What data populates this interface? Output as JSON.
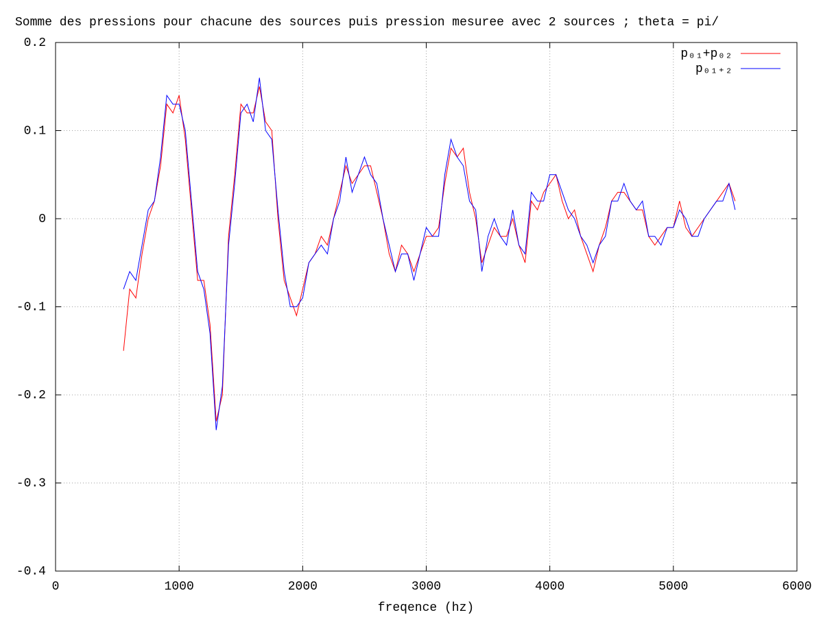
{
  "chart_data": {
    "type": "line",
    "title": "Somme des pressions pour chacune des sources puis pression mesuree avec 2 sources ; theta = pi/",
    "x_label": "freqence (hz)",
    "x": [
      550,
      600,
      650,
      700,
      750,
      800,
      850,
      900,
      950,
      1000,
      1050,
      1100,
      1150,
      1200,
      1250,
      1300,
      1350,
      1400,
      1450,
      1500,
      1550,
      1600,
      1650,
      1700,
      1750,
      1800,
      1850,
      1900,
      1950,
      2000,
      2050,
      2100,
      2150,
      2200,
      2250,
      2300,
      2350,
      2400,
      2450,
      2500,
      2550,
      2600,
      2650,
      2700,
      2750,
      2800,
      2850,
      2900,
      2950,
      3000,
      3050,
      3100,
      3150,
      3200,
      3250,
      3300,
      3350,
      3400,
      3450,
      3500,
      3550,
      3600,
      3650,
      3700,
      3750,
      3800,
      3850,
      3900,
      3950,
      4000,
      4050,
      4100,
      4150,
      4200,
      4250,
      4300,
      4350,
      4400,
      4450,
      4500,
      4550,
      4600,
      4650,
      4700,
      4750,
      4800,
      4850,
      4900,
      4950,
      5000,
      5050,
      5100,
      5150,
      5200,
      5250,
      5300,
      5350,
      5400,
      5450,
      5500
    ],
    "series": [
      {
        "name": "p₀₁+p₀₂",
        "color": "#ff0000",
        "values": [
          -0.15,
          -0.08,
          -0.09,
          -0.04,
          0.0,
          0.02,
          0.06,
          0.13,
          0.12,
          0.14,
          0.09,
          0.01,
          -0.07,
          -0.07,
          -0.12,
          -0.23,
          -0.2,
          -0.02,
          0.05,
          0.13,
          0.12,
          0.12,
          0.15,
          0.11,
          0.1,
          0.0,
          -0.07,
          -0.09,
          -0.11,
          -0.08,
          -0.05,
          -0.04,
          -0.02,
          -0.03,
          0.0,
          0.03,
          0.06,
          0.04,
          0.05,
          0.06,
          0.06,
          0.03,
          0.0,
          -0.04,
          -0.06,
          -0.03,
          -0.04,
          -0.06,
          -0.04,
          -0.02,
          -0.02,
          -0.01,
          0.04,
          0.08,
          0.07,
          0.08,
          0.03,
          0.0,
          -0.05,
          -0.03,
          -0.01,
          -0.02,
          -0.02,
          0.0,
          -0.03,
          -0.05,
          0.02,
          0.01,
          0.03,
          0.04,
          0.05,
          0.02,
          0.0,
          0.01,
          -0.02,
          -0.04,
          -0.06,
          -0.03,
          -0.01,
          0.02,
          0.03,
          0.03,
          0.02,
          0.01,
          0.01,
          -0.02,
          -0.03,
          -0.02,
          -0.01,
          -0.01,
          0.02,
          -0.01,
          -0.02,
          -0.01,
          0.0,
          0.01,
          0.02,
          0.03,
          0.04,
          0.02
        ]
      },
      {
        "name": "p₀₁₊₂",
        "color": "#0000ff",
        "values": [
          -0.08,
          -0.06,
          -0.07,
          -0.03,
          0.01,
          0.02,
          0.07,
          0.14,
          0.13,
          0.13,
          0.1,
          0.02,
          -0.06,
          -0.08,
          -0.13,
          -0.24,
          -0.19,
          -0.03,
          0.04,
          0.12,
          0.13,
          0.11,
          0.16,
          0.1,
          0.09,
          0.01,
          -0.06,
          -0.1,
          -0.1,
          -0.09,
          -0.05,
          -0.04,
          -0.03,
          -0.04,
          0.0,
          0.02,
          0.07,
          0.03,
          0.05,
          0.07,
          0.05,
          0.04,
          0.0,
          -0.03,
          -0.06,
          -0.04,
          -0.04,
          -0.07,
          -0.04,
          -0.01,
          -0.02,
          -0.02,
          0.05,
          0.09,
          0.07,
          0.06,
          0.02,
          0.01,
          -0.06,
          -0.02,
          0.0,
          -0.02,
          -0.03,
          0.01,
          -0.03,
          -0.04,
          0.03,
          0.02,
          0.02,
          0.05,
          0.05,
          0.03,
          0.01,
          0.0,
          -0.02,
          -0.03,
          -0.05,
          -0.03,
          -0.02,
          0.02,
          0.02,
          0.04,
          0.02,
          0.01,
          0.02,
          -0.02,
          -0.02,
          -0.03,
          -0.01,
          -0.01,
          0.01,
          0.0,
          -0.02,
          -0.02,
          0.0,
          0.01,
          0.02,
          0.02,
          0.04,
          0.01
        ]
      }
    ],
    "xlim": [
      0,
      6000
    ],
    "xticks": [
      0,
      1000,
      2000,
      3000,
      4000,
      5000,
      6000
    ],
    "ylim": [
      -0.4,
      0.2
    ],
    "yticks": [
      -0.4,
      -0.3,
      -0.2,
      -0.1,
      0,
      0.1,
      0.2
    ],
    "grid": true,
    "legend": "top-right"
  }
}
